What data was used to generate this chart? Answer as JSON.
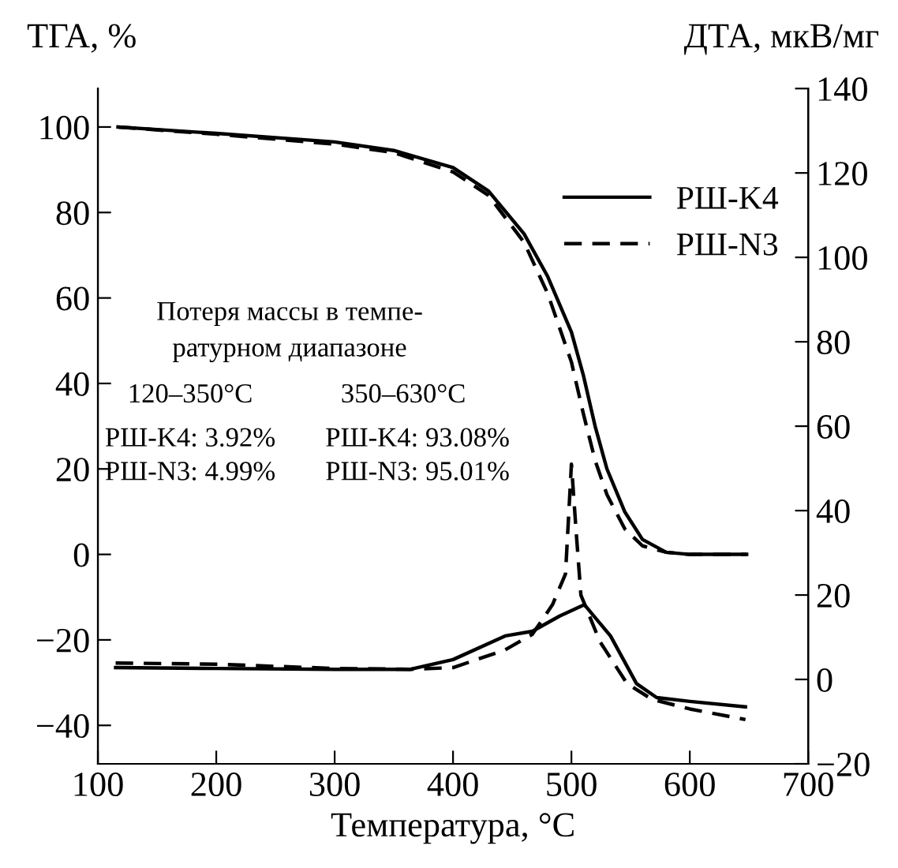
{
  "chart_data": {
    "type": "line",
    "xlabel": "Температура, °C",
    "ylabel": "ТГА, %",
    "y2label": "ДТА, мкВ/мг",
    "xlim": [
      100,
      700
    ],
    "xticks": [
      100,
      200,
      300,
      400,
      500,
      600,
      700
    ],
    "ylim": [
      -49,
      109
    ],
    "yticks": [
      {
        "value": -40,
        "label": "−40"
      },
      {
        "value": -20,
        "label": "−20"
      },
      0,
      20,
      40,
      60,
      80,
      100
    ],
    "y2lim": [
      -20,
      140
    ],
    "y2ticks": [
      {
        "value": -20,
        "label": "−20"
      },
      0,
      20,
      40,
      60,
      80,
      100,
      120,
      140
    ],
    "legend": "top right",
    "grid": false,
    "series": [
      {
        "name": "РШ-K4",
        "color": "#000000",
        "line_style": "solid",
        "x": [
          117,
          200,
          300,
          350,
          400,
          430,
          460,
          480,
          500,
          510,
          520,
          530,
          545,
          560,
          580,
          600,
          648
        ],
        "values": [
          100,
          98.5,
          96.5,
          94.5,
          90.5,
          85,
          75,
          65,
          52,
          42,
          30,
          20,
          10,
          3.5,
          0.5,
          0,
          0
        ]
      },
      {
        "name": "РШ-N3",
        "color": "#000000",
        "line_style": "dashed",
        "x": [
          117,
          200,
          300,
          350,
          400,
          430,
          460,
          480,
          500,
          510,
          520,
          530,
          545,
          560,
          580,
          600,
          648
        ],
        "values": [
          100,
          98.3,
          96,
          94,
          89.5,
          84,
          73,
          61,
          45,
          33,
          22,
          14,
          6,
          2,
          0.5,
          0,
          0
        ]
      },
      {
        "color": "#000000",
        "line_style": "solid",
        "axis": "y2",
        "x": [
          115,
          200,
          300,
          364,
          400,
          444,
          467,
          490,
          511,
          533,
          555,
          572,
          600,
          647
        ],
        "values": [
          2.8,
          2.6,
          2.4,
          2.4,
          4.7,
          10.3,
          11.4,
          15,
          17.7,
          10.3,
          -1,
          -4.3,
          -5.2,
          -6.5
        ]
      },
      {
        "color": "#000000",
        "line_style": "dashed",
        "axis": "y2",
        "x": [
          115,
          200,
          300,
          364,
          400,
          444,
          467,
          484,
          495,
          500,
          504,
          508,
          524,
          547,
          568,
          600,
          647
        ],
        "values": [
          3.9,
          3.6,
          2.6,
          2.4,
          2.8,
          7,
          10.7,
          17.7,
          25,
          51,
          35,
          20,
          9,
          -1,
          -4.7,
          -7,
          -9.5
        ]
      }
    ],
    "annotations": [
      "Потеря массы в темпе-\nратурном диапазоне",
      "120–350°C",
      "350–630°C",
      "РШ-K4: 3.92%",
      "РШ-K4: 93.08%",
      "РШ-N3: 4.99%",
      "РШ-N3: 95.01%"
    ]
  }
}
